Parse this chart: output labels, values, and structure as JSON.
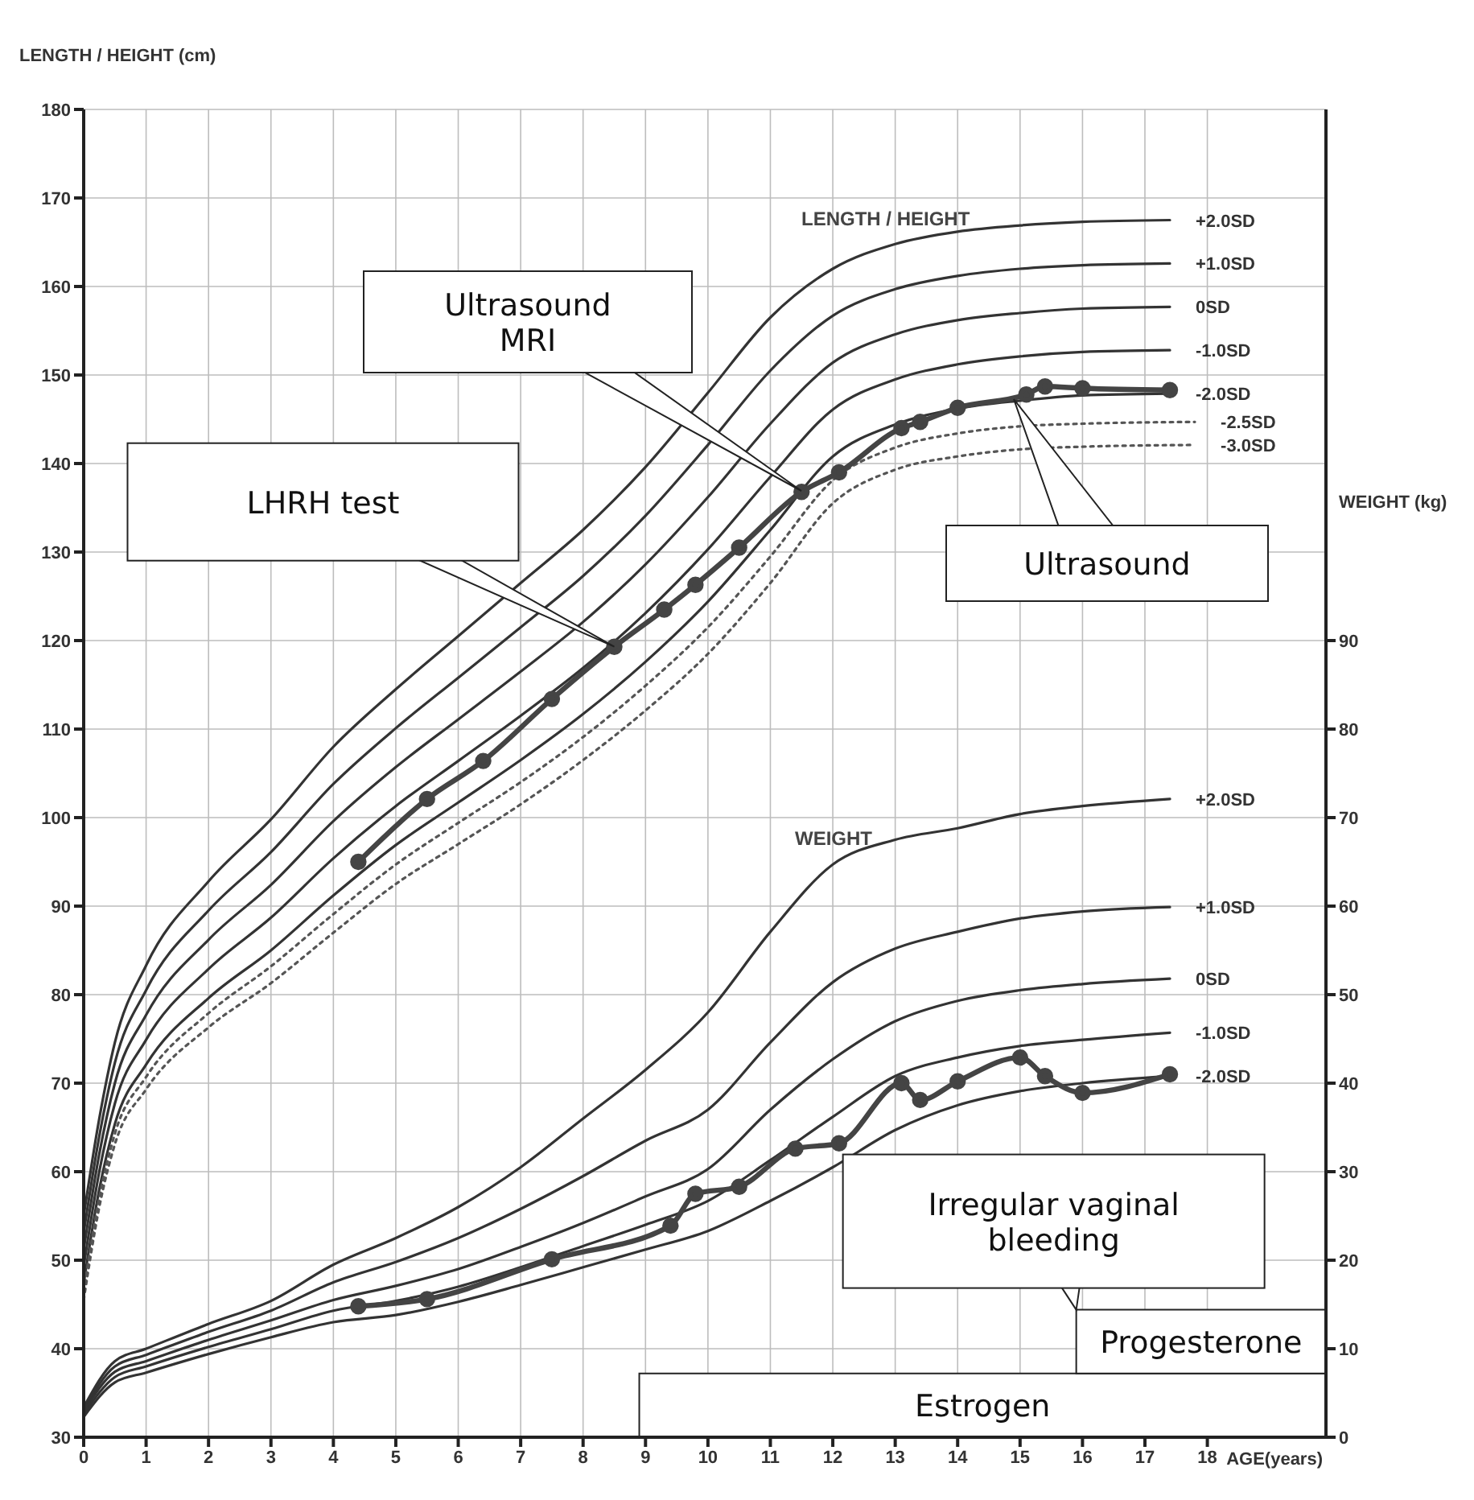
{
  "chart_data": {
    "type": "line",
    "xlabel": "AGE(years)",
    "ylabel": "LENGTH / HEIGHT (cm)",
    "y2label": "WEIGHT (kg)",
    "xlim": [
      0,
      19.9
    ],
    "xticks": [
      0,
      1,
      2,
      3,
      4,
      5,
      6,
      7,
      8,
      9,
      10,
      11,
      12,
      13,
      14,
      15,
      16,
      17,
      18
    ],
    "ylim": [
      30,
      180
    ],
    "yticks": [
      30,
      40,
      50,
      60,
      70,
      80,
      90,
      100,
      110,
      120,
      130,
      140,
      150,
      160,
      170,
      180
    ],
    "y2lim": [
      0,
      150
    ],
    "y2ticks": [
      0,
      10,
      20,
      30,
      40,
      50,
      60,
      70,
      80,
      90
    ],
    "grid": true,
    "series": [
      {
        "name": "+2.0SD",
        "color": "#333333",
        "line_style": "solid",
        "marker": "none",
        "x": [
          0,
          0.25,
          0.5,
          1,
          2,
          3,
          4,
          5,
          6,
          7,
          8,
          9,
          10,
          11,
          12,
          13,
          14,
          15,
          16,
          17.4
        ],
        "values": [
          55,
          66,
          74.6,
          83.3,
          92.8,
          99.8,
          108,
          114.5,
          120.5,
          126.5,
          132.5,
          139.6,
          148,
          156.5,
          162,
          164.8,
          166.2,
          166.9,
          167.3,
          167.5
        ]
      },
      {
        "name": "+1.0SD",
        "color": "#333333",
        "line_style": "solid",
        "marker": "none",
        "x": [
          0,
          0.25,
          0.5,
          1,
          2,
          3,
          4,
          5,
          6,
          7,
          8,
          9,
          10,
          11,
          12,
          13,
          14,
          15,
          16,
          17.4
        ],
        "values": [
          53.1,
          64,
          72.3,
          80.5,
          89.5,
          96.1,
          103.8,
          110.1,
          115.8,
          121.5,
          127.3,
          134.1,
          142.1,
          150.5,
          156.7,
          159.7,
          161.2,
          162,
          162.4,
          162.6
        ]
      },
      {
        "name": "0SD",
        "color": "#333333",
        "line_style": "solid",
        "marker": "none",
        "x": [
          0,
          0.25,
          0.5,
          1,
          2,
          3,
          4,
          5,
          6,
          7,
          8,
          9,
          10,
          11,
          12,
          13,
          14,
          15,
          16,
          17.4
        ],
        "values": [
          51.2,
          62,
          70,
          77.7,
          86.2,
          92.4,
          99.6,
          105.7,
          111.1,
          116.5,
          122.1,
          128.6,
          136.2,
          144.5,
          151.4,
          154.6,
          156.2,
          157,
          157.5,
          157.7
        ]
      },
      {
        "name": "-1.0SD",
        "color": "#333333",
        "line_style": "solid",
        "marker": "none",
        "x": [
          0,
          0.25,
          0.5,
          1,
          2,
          3,
          4,
          5,
          6,
          7,
          8,
          9,
          10,
          11,
          12,
          13,
          14,
          15,
          16,
          17.4
        ],
        "values": [
          49.3,
          60,
          67.7,
          74.9,
          82.9,
          88.7,
          95.4,
          101.3,
          106.4,
          111.5,
          116.9,
          123.1,
          130.3,
          138.5,
          146.1,
          149.5,
          151.2,
          152.1,
          152.6,
          152.8
        ]
      },
      {
        "name": "-2.0SD",
        "color": "#333333",
        "line_style": "solid",
        "marker": "none",
        "x": [
          0,
          0.25,
          0.5,
          1,
          2,
          3,
          4,
          5,
          6,
          7,
          8,
          9,
          10,
          11,
          12,
          13,
          14,
          15,
          16,
          17.4
        ],
        "values": [
          47.4,
          58,
          65.4,
          72.1,
          79.6,
          85,
          91.2,
          96.9,
          101.7,
          106.5,
          111.7,
          117.6,
          124.4,
          132.5,
          140.8,
          144.4,
          146.2,
          147.1,
          147.7,
          147.9
        ]
      },
      {
        "name": "-2.5SD",
        "color": "#555555",
        "line_style": "dotted",
        "marker": "none",
        "x": [
          0,
          0.25,
          0.5,
          1,
          2,
          3,
          4,
          5,
          6,
          7,
          8,
          9,
          10,
          11,
          12,
          13,
          14,
          15,
          16,
          17.8
        ],
        "values": [
          46.5,
          57,
          64.3,
          70.7,
          77.9,
          83.2,
          89.1,
          94.7,
          99.4,
          104,
          109.1,
          114.9,
          121.5,
          129.5,
          138.1,
          141.8,
          143.4,
          144.2,
          144.5,
          144.7
        ]
      },
      {
        "name": "-3.0SD",
        "color": "#555555",
        "line_style": "dotted",
        "marker": "none",
        "x": [
          0,
          0.25,
          0.5,
          1,
          2,
          3,
          4,
          5,
          6,
          7,
          8,
          9,
          10,
          11,
          12,
          13,
          14,
          15,
          16,
          17.8
        ],
        "values": [
          45.5,
          56,
          63.1,
          69.3,
          76.3,
          81.3,
          87,
          92.5,
          97,
          101.5,
          106.5,
          112.1,
          118.5,
          126.5,
          135.5,
          139.3,
          140.8,
          141.6,
          141.9,
          142.1
        ]
      },
      {
        "color": "#444444",
        "line_style": "solid",
        "marker": "circle",
        "x": [
          4.4,
          5.5,
          6.4,
          7.5,
          8.5,
          9.3,
          9.8,
          10.5,
          11.5,
          12.1,
          13.1,
          13.4,
          14.0,
          15.1,
          15.4,
          16.0,
          17.4
        ],
        "values": [
          95.0,
          102.1,
          106.4,
          113.4,
          119.3,
          123.5,
          126.3,
          130.5,
          136.8,
          139.0,
          144.0,
          144.7,
          146.3,
          147.8,
          148.7,
          148.5,
          148.3
        ]
      },
      {
        "name": "+2.0SD",
        "color": "#333333",
        "axis": "y2",
        "line_style": "solid",
        "marker": "none",
        "x": [
          0,
          0.5,
          1,
          2,
          3,
          4,
          5,
          6,
          7,
          8,
          9,
          10,
          11,
          12,
          13,
          14,
          15,
          16,
          17.4
        ],
        "values": [
          3.4,
          8.6,
          10,
          12.8,
          15.4,
          19.5,
          22.5,
          26,
          30.5,
          36,
          41.5,
          48,
          57.1,
          64.7,
          67.5,
          68.8,
          70.4,
          71.3,
          72.1
        ]
      },
      {
        "name": "+1.0SD",
        "color": "#333333",
        "axis": "y2",
        "line_style": "solid",
        "marker": "none",
        "x": [
          0,
          0.5,
          1,
          2,
          3,
          4,
          5,
          6,
          7,
          8,
          9,
          10,
          11,
          12,
          13,
          14,
          15,
          16,
          17.4
        ],
        "values": [
          3.1,
          8,
          9.3,
          11.9,
          14.3,
          17.5,
          19.8,
          22.5,
          25.8,
          29.5,
          33.5,
          37,
          44.6,
          51.4,
          55.2,
          57.1,
          58.6,
          59.4,
          59.9
        ]
      },
      {
        "name": "0SD",
        "color": "#333333",
        "axis": "y2",
        "line_style": "solid",
        "marker": "none",
        "x": [
          0,
          0.5,
          1,
          2,
          3,
          4,
          5,
          6,
          7,
          8,
          9,
          10,
          11,
          12,
          13,
          14,
          15,
          16,
          17.4
        ],
        "values": [
          2.9,
          7.4,
          8.6,
          11,
          13.2,
          15.5,
          17.1,
          19,
          21.5,
          24.2,
          27.2,
          30.3,
          37,
          42.7,
          47,
          49.3,
          50.5,
          51.2,
          51.8
        ]
      },
      {
        "name": "-1.0SD",
        "color": "#333333",
        "axis": "y2",
        "line_style": "solid",
        "marker": "none",
        "x": [
          0,
          0.5,
          1,
          2,
          3,
          4,
          5,
          6,
          7,
          8,
          9,
          10,
          11,
          12,
          13,
          14,
          15,
          16,
          17.4
        ],
        "values": [
          2.6,
          6.8,
          8,
          10.2,
          12.2,
          14.3,
          15.4,
          17,
          19.2,
          21.6,
          24,
          26.7,
          31.3,
          36.2,
          40.8,
          42.9,
          44.2,
          44.9,
          45.7
        ]
      },
      {
        "name": "-2.0SD",
        "color": "#333333",
        "axis": "y2",
        "line_style": "solid",
        "marker": "none",
        "x": [
          0,
          0.5,
          1,
          2,
          3,
          4,
          5,
          6,
          7,
          8,
          9,
          10,
          11,
          12,
          13,
          14,
          15,
          16,
          17.4
        ],
        "values": [
          2.3,
          6.2,
          7.3,
          9.4,
          11.3,
          13,
          13.8,
          15.3,
          17.2,
          19.2,
          21.2,
          23.3,
          26.7,
          30.5,
          34.7,
          37.5,
          39.1,
          40,
          40.8
        ]
      },
      {
        "color": "#444444",
        "axis": "y2",
        "line_style": "solid",
        "marker": "circle",
        "x": [
          4.4,
          5.5,
          7.5,
          9.4,
          9.8,
          10.5,
          11.4,
          12.1,
          13.1,
          13.4,
          14.0,
          15.0,
          15.4,
          16.0,
          17.4
        ],
        "values": [
          14.8,
          15.6,
          20.1,
          23.9,
          27.5,
          28.3,
          32.6,
          33.2,
          40.0,
          38.1,
          40.2,
          42.9,
          40.8,
          38.9,
          41.0
        ]
      }
    ],
    "bands": [
      {
        "axis": "x",
        "from": 8.9,
        "to": 19.9,
        "label": "Estrogen"
      },
      {
        "axis": "x",
        "from": 15.9,
        "to": 19.9,
        "label": "Progesterone"
      }
    ],
    "annotations": [
      {
        "text": "LHRH test",
        "x": 8.5,
        "y": 119.3
      },
      "Ultrasound\nMRI",
      "Ultrasound",
      {
        "text": "Irregular vaginal\nbleeding",
        "x": 15.9,
        "y": 44.4
      },
      "LENGTH / HEIGHT",
      "WEIGHT"
    ]
  }
}
